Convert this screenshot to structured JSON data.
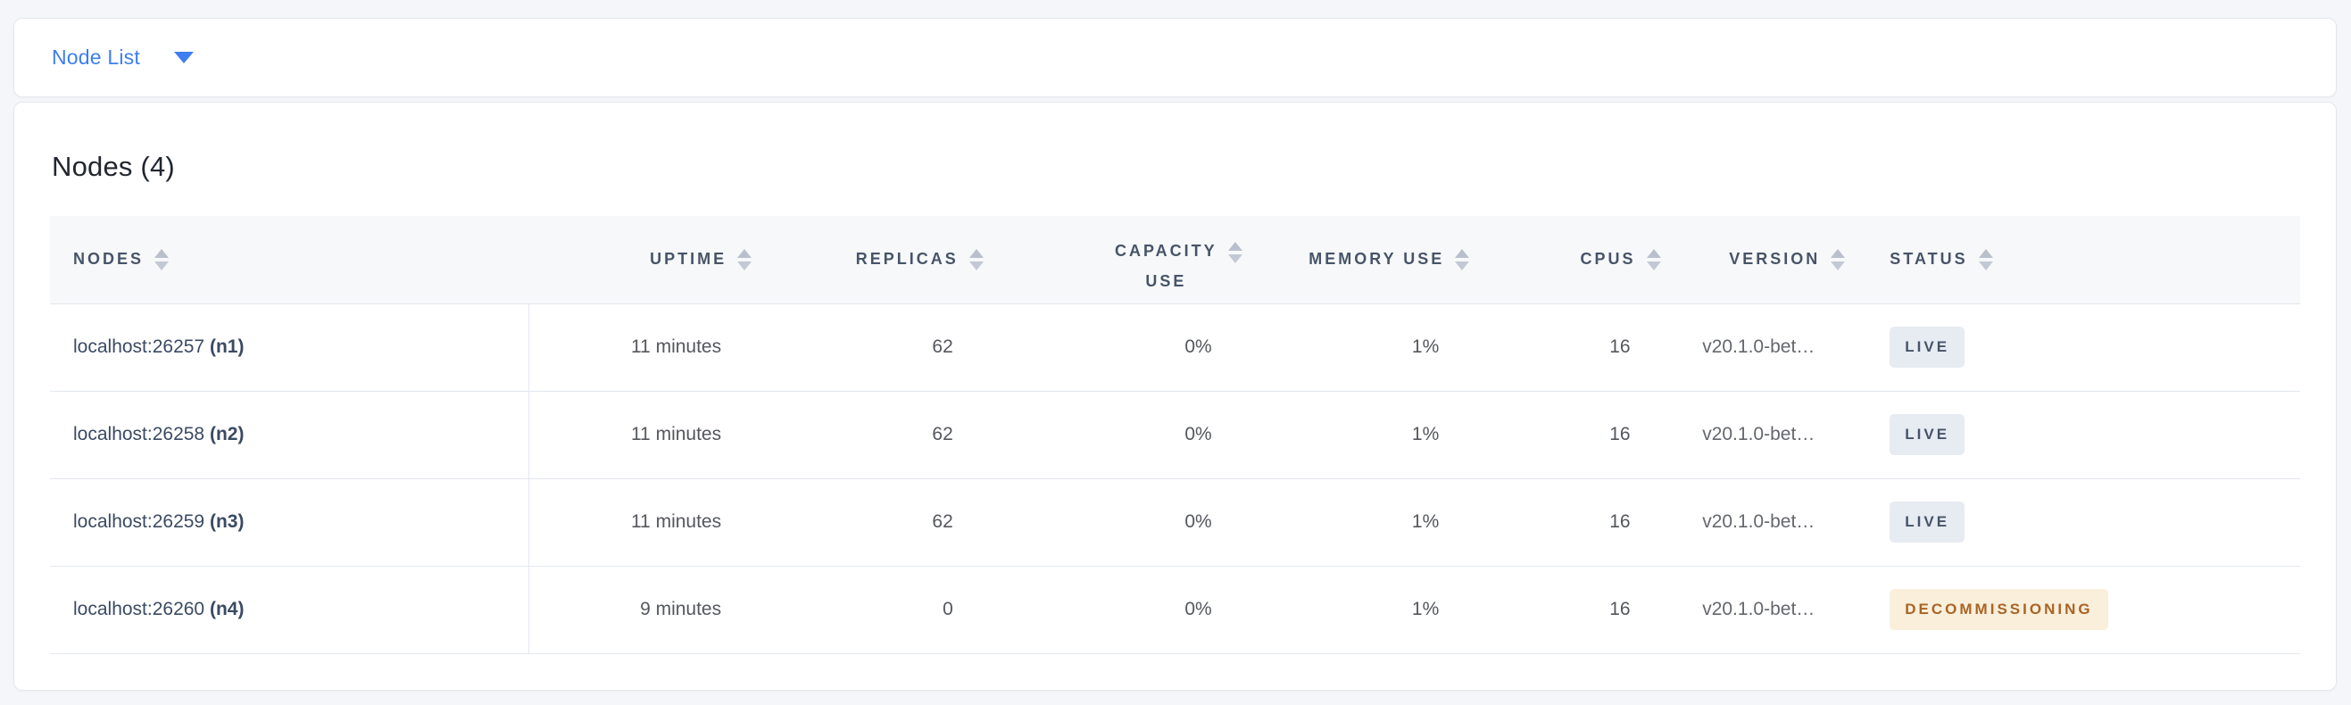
{
  "view_selector": {
    "label": "Node List"
  },
  "panel": {
    "title": "Nodes (4)"
  },
  "table": {
    "columns": [
      {
        "key": "nodes",
        "label": "NODES",
        "align": "left"
      },
      {
        "key": "uptime",
        "label": "UPTIME",
        "align": "right"
      },
      {
        "key": "replicas",
        "label": "REPLICAS",
        "align": "right"
      },
      {
        "key": "capacity_use",
        "label": "CAPACITY USE",
        "lines": [
          "CAPACITY",
          "USE"
        ],
        "align": "right"
      },
      {
        "key": "memory_use",
        "label": "MEMORY USE",
        "align": "right"
      },
      {
        "key": "cpus",
        "label": "CPUS",
        "align": "right"
      },
      {
        "key": "version",
        "label": "VERSION",
        "align": "right"
      },
      {
        "key": "status",
        "label": "STATUS",
        "align": "left"
      }
    ],
    "rows": [
      {
        "address": "localhost:26257",
        "node_id": "(n1)",
        "uptime": "11 minutes",
        "replicas": "62",
        "capacity_use": "0%",
        "memory_use": "1%",
        "cpus": "16",
        "version": "v20.1.0-bet…",
        "status": "LIVE",
        "status_variant": "live"
      },
      {
        "address": "localhost:26258",
        "node_id": "(n2)",
        "uptime": "11 minutes",
        "replicas": "62",
        "capacity_use": "0%",
        "memory_use": "1%",
        "cpus": "16",
        "version": "v20.1.0-bet…",
        "status": "LIVE",
        "status_variant": "live"
      },
      {
        "address": "localhost:26259",
        "node_id": "(n3)",
        "uptime": "11 minutes",
        "replicas": "62",
        "capacity_use": "0%",
        "memory_use": "1%",
        "cpus": "16",
        "version": "v20.1.0-bet…",
        "status": "LIVE",
        "status_variant": "live"
      },
      {
        "address": "localhost:26260",
        "node_id": "(n4)",
        "uptime": "9 minutes",
        "replicas": "0",
        "capacity_use": "0%",
        "memory_use": "1%",
        "cpus": "16",
        "version": "v20.1.0-bet…",
        "status": "DECOMMISSIONING",
        "status_variant": "decommissioning"
      }
    ]
  },
  "colors": {
    "accent_blue": "#3d7ef0",
    "page_background": "#f4f6f9",
    "header_background": "#f7f8f9",
    "header_text": "#475468",
    "live_badge_background": "#e7ebf2",
    "live_badge_text": "#475468",
    "decommissioning_badge_background": "#f9efdb",
    "decommissioning_badge_text": "#a96426"
  }
}
